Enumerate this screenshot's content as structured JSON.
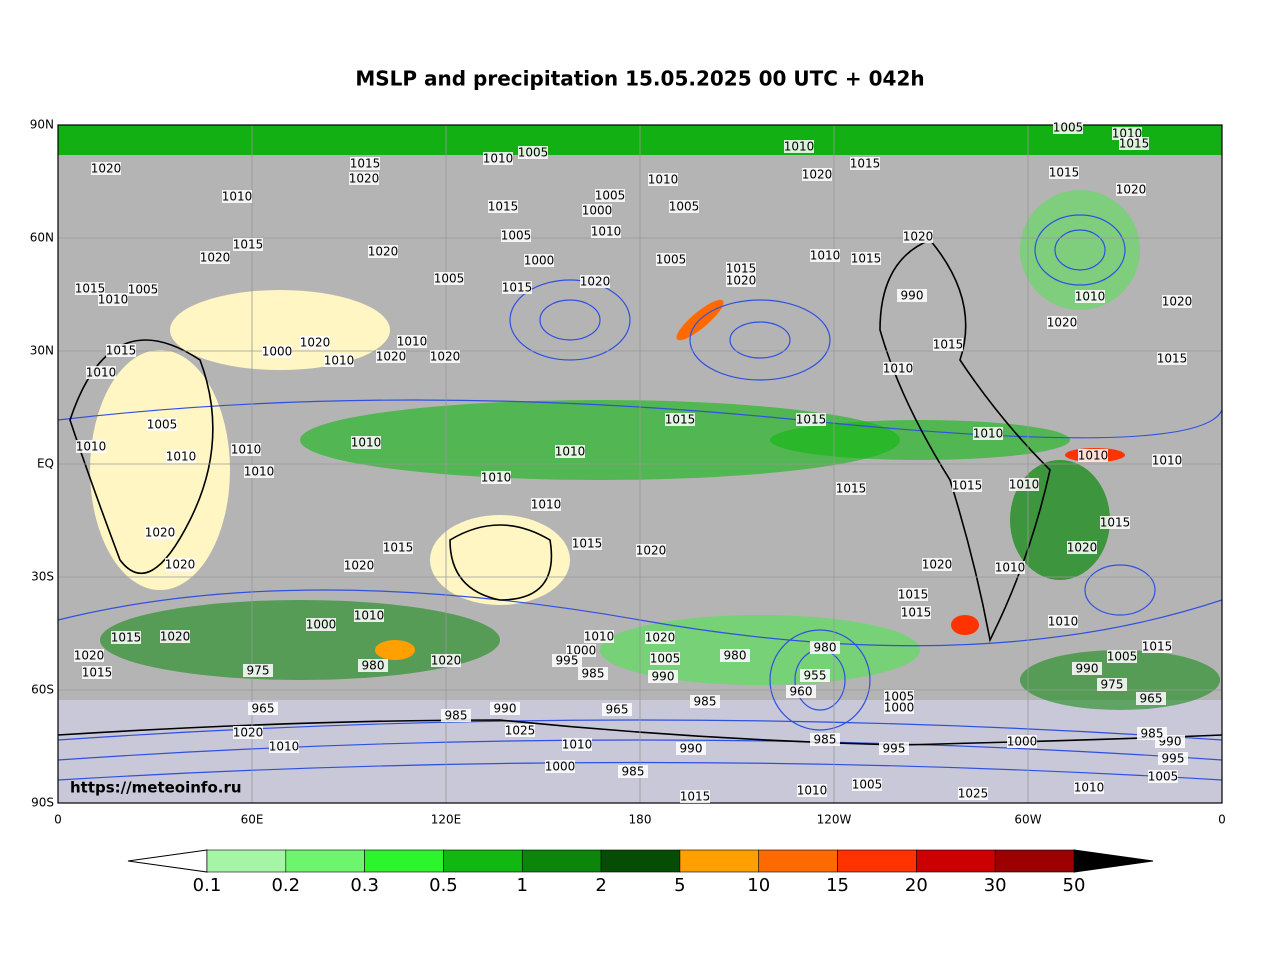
{
  "title": "MSLP and precipitation 15.05.2025 00 UTC + 042h",
  "lat_labels": [
    "90N",
    "60N",
    "30N",
    "EQ",
    "30S",
    "60S",
    "90S"
  ],
  "lon_labels": [
    "0",
    "60E",
    "120E",
    "180",
    "120W",
    "60W",
    "0"
  ],
  "source": "https://meteoinfo.ru",
  "colorbar": {
    "levels": [
      0.1,
      0.2,
      0.3,
      0.5,
      1,
      2,
      5,
      10,
      15,
      20,
      30,
      50
    ],
    "colors": [
      "#a6f5a6",
      "#6ef56e",
      "#2cf52c",
      "#10b810",
      "#0a870a",
      "#054d05",
      "#ff9f00",
      "#ff6a00",
      "#ff3300",
      "#cc0000",
      "#9c0000"
    ],
    "under_color": "#ffffff",
    "over_color": "#000000"
  },
  "isobar_labels": [
    1020,
    1015,
    1020,
    1010,
    1005,
    1010,
    1015,
    1020,
    1005,
    1010,
    1015,
    1015,
    1020,
    1010,
    1005,
    1010,
    1015,
    1000,
    1005,
    1010,
    1005,
    1015,
    1020,
    1020,
    1000,
    1005,
    1015,
    1020,
    1010,
    1015,
    1020,
    1005,
    1020,
    1015,
    990,
    1010,
    1020,
    1020,
    1015,
    1010,
    1005,
    1015,
    1010,
    1000,
    1020,
    1010,
    1020,
    1010,
    1020,
    1015,
    1015,
    1010,
    1015,
    1015,
    1005,
    1010,
    1010,
    1010,
    1010,
    1010,
    1010,
    1010,
    1010,
    1015,
    1015,
    1010,
    1010,
    1010,
    1010,
    1015,
    1020,
    1020,
    1020,
    1015,
    1020,
    1015,
    1020,
    1020,
    1010,
    1015,
    1015,
    1010,
    1015,
    1005,
    990,
    975,
    965,
    1020,
    1015,
    1020,
    1015,
    975,
    965,
    1000,
    1010,
    980,
    1020,
    1010,
    1020,
    1000,
    995,
    985,
    1005,
    990,
    980,
    980,
    955,
    960,
    985,
    965,
    1005,
    1000,
    990,
    1025,
    985,
    1020,
    1010,
    1010,
    990,
    1000,
    985,
    1015,
    1010,
    1005,
    1025,
    1010,
    1005,
    995,
    990,
    985,
    995,
    985,
    1000
  ]
}
